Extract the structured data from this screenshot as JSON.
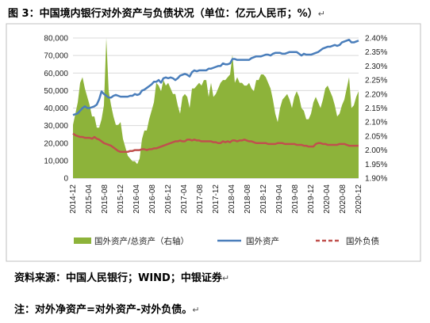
{
  "figure": {
    "caption": "图 3：中国境内银行对外资产与负债状况（单位：亿元人民币；%）",
    "source_note": "资料来源：中国人民银行；WIND；中银证券",
    "formula_note": "注：对外净资产=对外资产-对外负债。",
    "return_mark": "↵"
  },
  "colors": {
    "area": "#8db33a",
    "assets_line": "#4a7ebb",
    "liabilities_line": "#c0504d"
  },
  "chart_data": {
    "type": "line",
    "x_tick_labels": [
      "2014-12",
      "2015-04",
      "2015-08",
      "2015-12",
      "2016-04",
      "2016-08",
      "2016-12",
      "2017-04",
      "2017-08",
      "2017-12",
      "2018-04",
      "2018-08",
      "2018-12",
      "2019-04",
      "2019-08",
      "2019-12",
      "2020-04",
      "2020-08",
      "2020-12"
    ],
    "left_axis": {
      "min": 0,
      "max": 80000,
      "step": 10000,
      "tick_labels": [
        "0",
        "10,000",
        "20,000",
        "30,000",
        "40,000",
        "50,000",
        "60,000",
        "70,000",
        "80,000"
      ]
    },
    "right_axis": {
      "min": 1.9,
      "max": 2.4,
      "step": 0.05,
      "tick_labels": [
        "1.90%",
        "1.95%",
        "2.00%",
        "2.05%",
        "2.10%",
        "2.15%",
        "2.20%",
        "2.25%",
        "2.30%",
        "2.35%",
        "2.40%"
      ]
    },
    "grid": "horizontal",
    "legend_position": "bottom",
    "series": [
      {
        "name": "国外资产/总资产（右轴）",
        "type": "area",
        "axis": "right",
        "values": [
          2.09,
          2.13,
          2.17,
          2.24,
          2.26,
          2.22,
          2.19,
          2.16,
          2.12,
          2.12,
          2.08,
          2.08,
          2.11,
          2.16,
          2.4,
          2.21,
          2.16,
          2.12,
          2.09,
          2.09,
          2.1,
          2.04,
          2.01,
          1.98,
          1.97,
          1.96,
          1.96,
          1.95,
          1.97,
          2.04,
          2.07,
          2.07,
          2.11,
          2.14,
          2.17,
          2.24,
          2.23,
          2.21,
          2.25,
          2.23,
          2.24,
          2.22,
          2.2,
          2.2,
          2.16,
          2.13,
          2.19,
          2.2,
          2.19,
          2.15,
          2.22,
          2.22,
          2.23,
          2.24,
          2.23,
          2.25,
          2.25,
          2.19,
          2.24,
          2.19,
          2.2,
          2.22,
          2.24,
          2.25,
          2.25,
          2.26,
          2.27,
          2.34,
          2.24,
          2.26,
          2.24,
          2.24,
          2.23,
          2.23,
          2.24,
          2.22,
          2.21,
          2.25,
          2.25,
          2.27,
          2.27,
          2.26,
          2.24,
          2.22,
          2.18,
          2.13,
          2.1,
          2.15,
          2.18,
          2.19,
          2.2,
          2.18,
          2.15,
          2.19,
          2.21,
          2.19,
          2.15,
          2.14,
          2.11,
          2.11,
          2.13,
          2.17,
          2.19,
          2.17,
          2.15,
          2.18,
          2.22,
          2.23,
          2.21,
          2.19,
          2.16,
          2.12,
          2.13,
          2.16,
          2.18,
          2.22,
          2.26,
          2.15,
          2.16,
          2.19,
          2.21
        ]
      },
      {
        "name": "国外资产",
        "type": "line",
        "axis": "left",
        "values": [
          36000,
          36500,
          37000,
          38500,
          40000,
          41000,
          40000,
          40000,
          40500,
          41000,
          42000,
          45000,
          49500,
          48000,
          47000,
          46000,
          46000,
          47000,
          47500,
          47000,
          46500,
          46500,
          46500,
          46500,
          47000,
          47000,
          48000,
          47500,
          48000,
          50000,
          50500,
          51500,
          52500,
          53500,
          55000,
          55000,
          56000,
          54500,
          57000,
          57500,
          57000,
          57500,
          57000,
          56000,
          57000,
          58500,
          59000,
          59500,
          59000,
          58000,
          60500,
          61500,
          61000,
          61500,
          61500,
          61500,
          61500,
          62500,
          62500,
          63000,
          63500,
          64000,
          64000,
          65500,
          65000,
          65000,
          65500,
          68000,
          68000,
          67500,
          67500,
          67500,
          67500,
          67500,
          67500,
          68500,
          69000,
          69500,
          69500,
          69500,
          70000,
          70500,
          70500,
          70000,
          71000,
          71500,
          71500,
          71500,
          71000,
          71000,
          71500,
          72000,
          72000,
          72000,
          72000,
          71000,
          70000,
          71000,
          70500,
          70500,
          70500,
          71000,
          71500,
          72000,
          73000,
          74000,
          74500,
          75000,
          75000,
          75500,
          76000,
          75500,
          76000,
          77500,
          78000,
          78500,
          79000,
          77500,
          77500,
          78000,
          78500
        ]
      },
      {
        "name": "国外负债",
        "type": "line",
        "axis": "left",
        "values": [
          25500,
          24500,
          24000,
          23500,
          23500,
          23000,
          23000,
          23000,
          22500,
          23500,
          22500,
          22000,
          21000,
          20000,
          19500,
          19000,
          18500,
          17500,
          16500,
          15500,
          15000,
          15000,
          15000,
          15000,
          15500,
          15500,
          16000,
          16000,
          16000,
          16500,
          16500,
          16000,
          16500,
          16500,
          17000,
          17000,
          17500,
          18000,
          18500,
          19000,
          19500,
          20000,
          20500,
          21000,
          21000,
          21500,
          21000,
          21000,
          22000,
          22000,
          21500,
          22000,
          21500,
          21500,
          21000,
          21000,
          21000,
          21000,
          21000,
          20500,
          20500,
          20000,
          20000,
          21000,
          20500,
          21000,
          20500,
          21500,
          21500,
          21000,
          21500,
          21500,
          22000,
          21500,
          21000,
          21000,
          20500,
          20000,
          20000,
          20000,
          20000,
          20000,
          19500,
          19500,
          19500,
          19500,
          20000,
          20000,
          20000,
          19500,
          19500,
          19500,
          19500,
          19500,
          19000,
          19000,
          19000,
          18500,
          18500,
          18000,
          18000,
          18000,
          19500,
          20000,
          20000,
          19500,
          19500,
          19000,
          19000,
          19000,
          19000,
          19000,
          19500,
          19500,
          19500,
          19000,
          18500,
          18500,
          18500,
          18500,
          18500
        ]
      }
    ]
  }
}
